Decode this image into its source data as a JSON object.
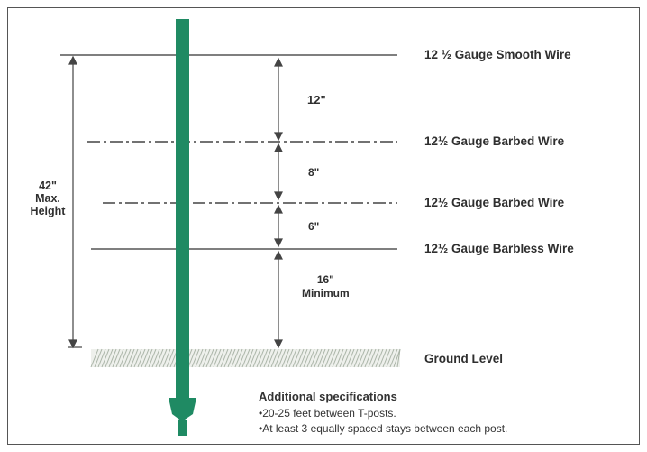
{
  "wires": [
    {
      "label": "12 ½ Gauge Smooth Wire",
      "style": "solid"
    },
    {
      "label": "12½ Gauge Barbed Wire",
      "style": "dashdot"
    },
    {
      "label": "12½ Gauge Barbed Wire",
      "style": "dashdot"
    },
    {
      "label": "12½ Gauge Barbless Wire",
      "style": "solid"
    }
  ],
  "ground_label": "Ground Level",
  "spacings": [
    {
      "value": "12\""
    },
    {
      "value": "8\""
    },
    {
      "value": "6\""
    },
    {
      "value": "16\"",
      "sub": "Minimum"
    }
  ],
  "max_height": {
    "line1": "42\"",
    "line2": "Max.",
    "line3": "Height"
  },
  "specs": {
    "title": "Additional specifications",
    "items": [
      "•20-25 feet between T-posts.",
      "•At least 3 equally spaced stays between each post."
    ]
  },
  "colors": {
    "post": "#1f8a63",
    "wire": "#555555",
    "ground": "#9aa89a"
  }
}
